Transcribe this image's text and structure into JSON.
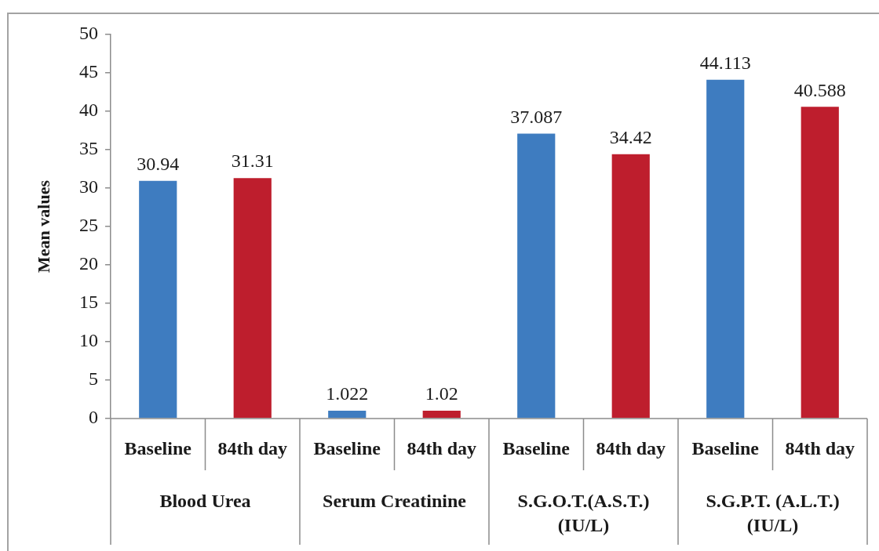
{
  "chart_data": {
    "type": "bar",
    "ylabel": "Mean values",
    "categories": [
      "Blood Urea",
      "Serum Creatinine",
      "S.G.O.T.(A.S.T.) (IU/L)",
      "S.G.P.T. (A.L.T.) (IU/L)"
    ],
    "series": [
      {
        "name": "Baseline",
        "color": "#3e7cc0",
        "values": [
          30.94,
          1.022,
          37.087,
          44.113
        ]
      },
      {
        "name": "84th day",
        "color": "#be1e2d",
        "values": [
          31.31,
          1.02,
          34.42,
          40.588
        ]
      }
    ],
    "ylim": [
      0,
      50
    ],
    "yticks": [
      0,
      5,
      10,
      15,
      20,
      25,
      30,
      35,
      40,
      45,
      50
    ],
    "grid": false,
    "legend": false,
    "data_labels": true
  }
}
